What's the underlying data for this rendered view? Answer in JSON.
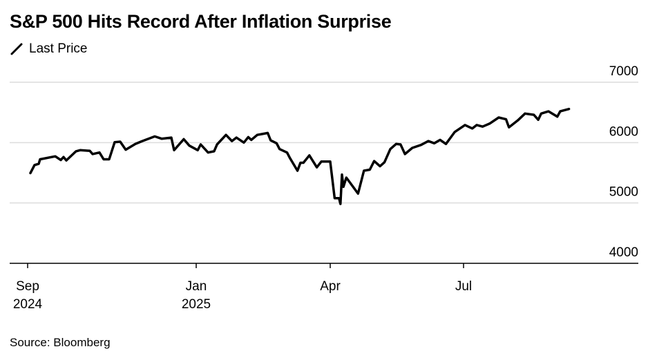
{
  "chart_data": {
    "type": "line",
    "title": "S&P 500 Hits Record After Inflation Surprise",
    "source": "Source: Bloomberg",
    "legend": {
      "placement": "top-left",
      "entries": [
        "Last Price"
      ]
    },
    "grid": true,
    "ylim": [
      4000,
      7000
    ],
    "y_ticks": [
      "7000",
      "6000",
      "5000",
      "4000"
    ],
    "x_ticks": [
      {
        "date": "2024-09-01",
        "label": "Sep",
        "sublabel": "2024"
      },
      {
        "date": "2025-01-01",
        "label": "Jan",
        "sublabel": "2025"
      },
      {
        "date": "2025-04-01",
        "label": "Apr",
        "sublabel": ""
      },
      {
        "date": "2025-07-01",
        "label": "Jul",
        "sublabel": ""
      }
    ],
    "colors": {
      "line": "#000000",
      "grid": "#dcdcdc",
      "axis": "#000000"
    },
    "series": [
      {
        "name": "Last Price",
        "x": [
          "2024-09-03",
          "2024-09-06",
          "2024-09-09",
          "2024-09-10",
          "2024-09-21",
          "2024-09-25",
          "2024-09-27",
          "2024-09-29",
          "2024-10-06",
          "2024-10-09",
          "2024-10-16",
          "2024-10-18",
          "2024-10-23",
          "2024-10-26",
          "2024-10-30",
          "2024-11-03",
          "2024-11-07",
          "2024-11-11",
          "2024-11-18",
          "2024-11-23",
          "2024-12-02",
          "2024-12-07",
          "2024-12-14",
          "2024-12-16",
          "2024-12-23",
          "2024-12-27",
          "2025-01-02",
          "2025-01-04",
          "2025-01-09",
          "2025-01-13",
          "2025-01-15",
          "2025-01-21",
          "2025-01-25",
          "2025-01-28",
          "2025-02-02",
          "2025-02-05",
          "2025-02-07",
          "2025-02-11",
          "2025-02-18",
          "2025-02-20",
          "2025-02-24",
          "2025-02-26",
          "2025-03-03",
          "2025-03-05",
          "2025-03-10",
          "2025-03-12",
          "2025-03-14",
          "2025-03-18",
          "2025-03-23",
          "2025-03-26",
          "2025-04-01",
          "2025-04-04",
          "2025-04-07",
          "2025-04-08",
          "2025-04-09",
          "2025-04-10",
          "2025-04-12",
          "2025-04-20",
          "2025-04-24",
          "2025-04-28",
          "2025-05-01",
          "2025-05-05",
          "2025-05-08",
          "2025-05-12",
          "2025-05-16",
          "2025-05-19",
          "2025-05-22",
          "2025-05-27",
          "2025-06-02",
          "2025-06-07",
          "2025-06-11",
          "2025-06-15",
          "2025-06-19",
          "2025-06-25",
          "2025-07-02",
          "2025-07-07",
          "2025-07-10",
          "2025-07-14",
          "2025-07-19",
          "2025-07-25",
          "2025-07-30",
          "2025-08-01",
          "2025-08-07",
          "2025-08-12",
          "2025-08-18",
          "2025-08-21",
          "2025-08-23",
          "2025-08-28",
          "2025-09-03",
          "2025-09-05",
          "2025-09-11"
        ],
        "values": [
          5495,
          5628,
          5648,
          5723,
          5773,
          5711,
          5761,
          5705,
          5856,
          5875,
          5864,
          5810,
          5836,
          5723,
          5723,
          6007,
          6015,
          5882,
          5977,
          6026,
          6102,
          6064,
          6083,
          5875,
          6057,
          5950,
          5875,
          5969,
          5836,
          5856,
          5969,
          6128,
          6026,
          6083,
          6000,
          6091,
          6045,
          6128,
          6159,
          6037,
          5989,
          5893,
          5836,
          5742,
          5534,
          5666,
          5666,
          5788,
          5591,
          5685,
          5685,
          5080,
          5080,
          4984,
          5470,
          5268,
          5420,
          5155,
          5534,
          5552,
          5693,
          5609,
          5674,
          5893,
          5977,
          5969,
          5810,
          5912,
          5961,
          6026,
          5989,
          6045,
          5977,
          6177,
          6291,
          6234,
          6291,
          6265,
          6318,
          6416,
          6386,
          6253,
          6367,
          6481,
          6461,
          6378,
          6481,
          6518,
          6430,
          6518,
          6557
        ]
      }
    ]
  }
}
